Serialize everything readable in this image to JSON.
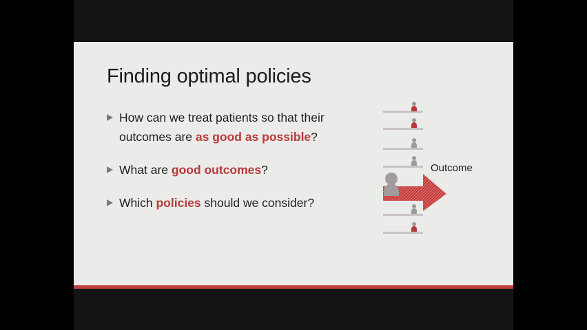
{
  "slide": {
    "title": "Finding optimal policies",
    "bullets": [
      {
        "parts": [
          "How can we treat patients so that their outcomes are ",
          "as good as possible",
          "?"
        ]
      },
      {
        "parts": [
          "What are ",
          "good outcomes",
          "?"
        ]
      },
      {
        "parts": [
          "Which ",
          "policies",
          " should we consider?"
        ]
      }
    ],
    "illustration": {
      "label": "Outcome",
      "lanes": 8
    }
  },
  "colors": {
    "accent": "#b73a3a",
    "slide_bg": "#ebebe9",
    "footer_bar": "#c0403e"
  },
  "icons": {
    "bullet": "triangle-bullet-icon",
    "person": "person-icon",
    "arrow": "right-arrow-icon"
  }
}
